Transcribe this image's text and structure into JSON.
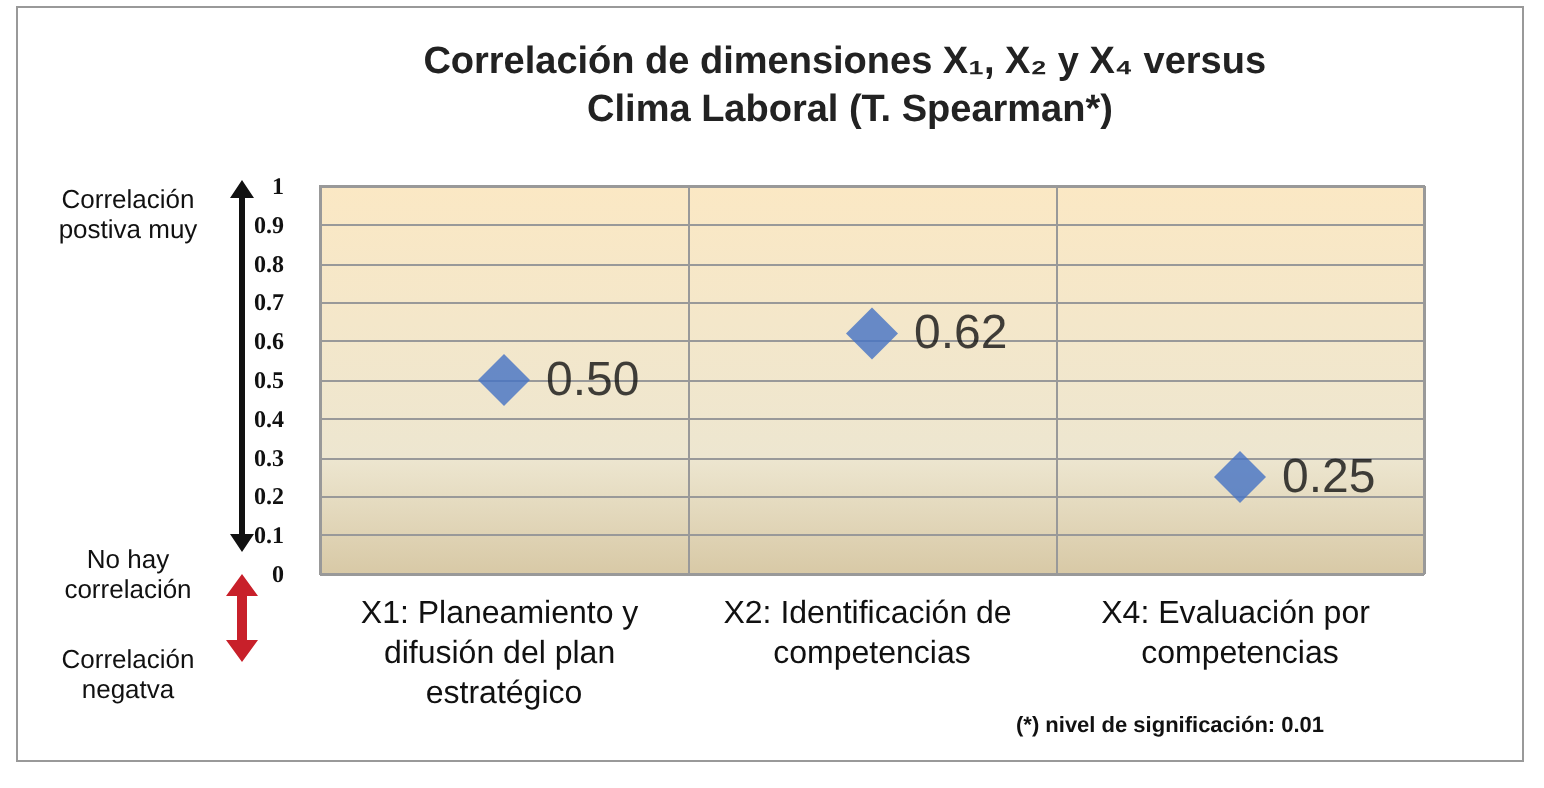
{
  "chart_data": {
    "type": "scatter",
    "title": "Correlación de dimensiones X₁, X₂ y X₄ versus Clima Laboral (T. Spearman*)",
    "categories": [
      "X1: Planeamiento y difusión del plan estratégico",
      "X2: Identificación de competencias",
      "X4: Evaluación por competencias"
    ],
    "values": [
      0.5,
      0.62,
      0.25
    ],
    "value_labels": [
      "0.50",
      "0.62",
      "0.25"
    ],
    "color": "#4472c4",
    "marker": "diamond",
    "ylim": [
      0,
      1
    ],
    "yticks": [
      0,
      0.1,
      0.2,
      0.3,
      0.4,
      0.5,
      0.6,
      0.7,
      0.8,
      0.9,
      1
    ],
    "grid": true,
    "annotations": [
      "Correlación postiva muy",
      "No hay correlación",
      "Correlación negatva",
      "(*) nivel de significación: 0.01"
    ]
  }
}
